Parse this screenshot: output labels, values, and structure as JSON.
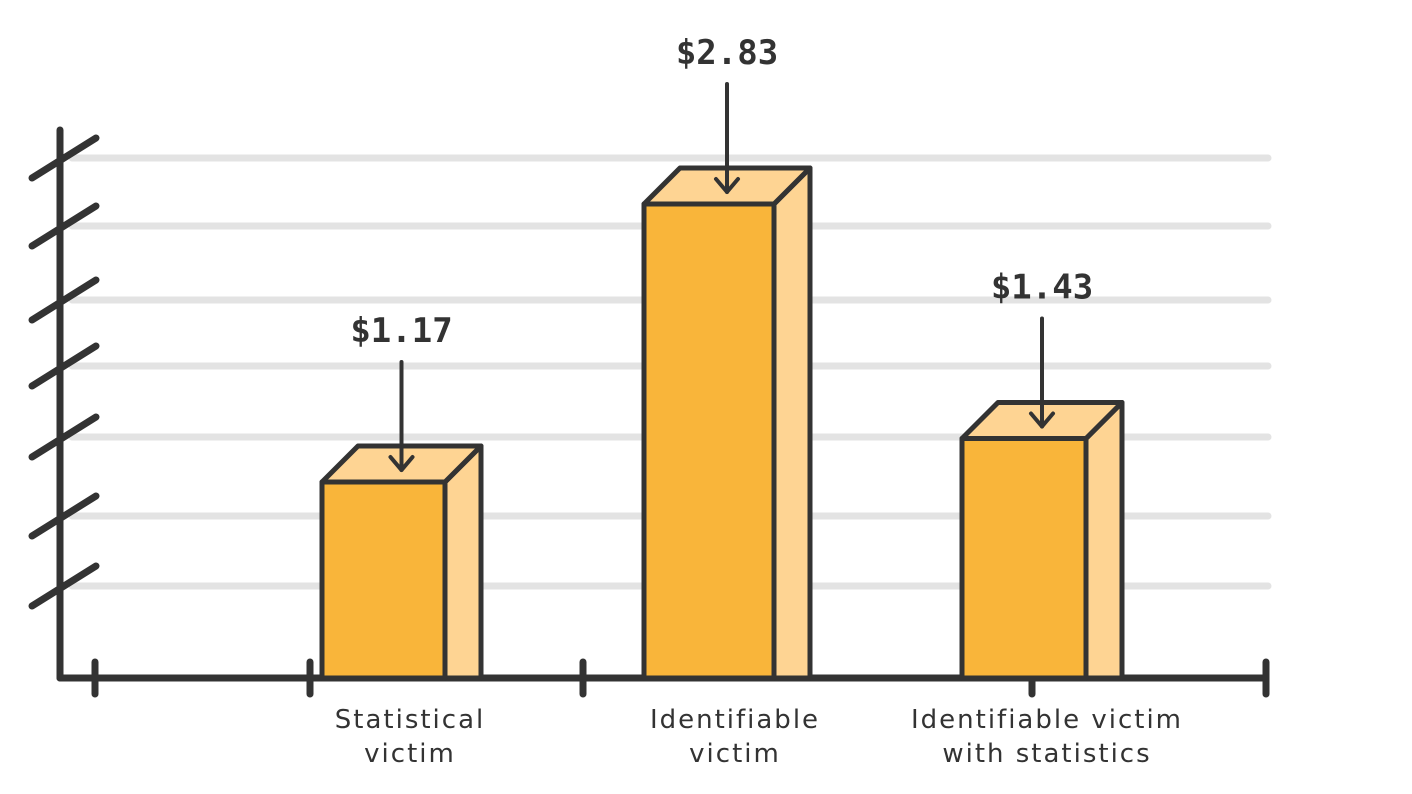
{
  "chart_data": {
    "type": "bar",
    "title": "",
    "xlabel": "",
    "ylabel": "",
    "ylim": [
      0,
      3.5
    ],
    "grid": true,
    "categories": [
      [
        "Statistical",
        "victim"
      ],
      [
        "Identifiable",
        "victim"
      ],
      [
        "Identifiable victim",
        "with statistics"
      ]
    ],
    "values": [
      1.17,
      2.83,
      1.43
    ],
    "value_labels": [
      "$1.17",
      "$2.83",
      "$1.43"
    ]
  },
  "colors": {
    "bar_front": "#F9B53A",
    "bar_side": "#FED493",
    "bar_top": "#FED493",
    "outline": "#333333",
    "grid": "#E3E3E3",
    "background": "#FFFFFF"
  }
}
